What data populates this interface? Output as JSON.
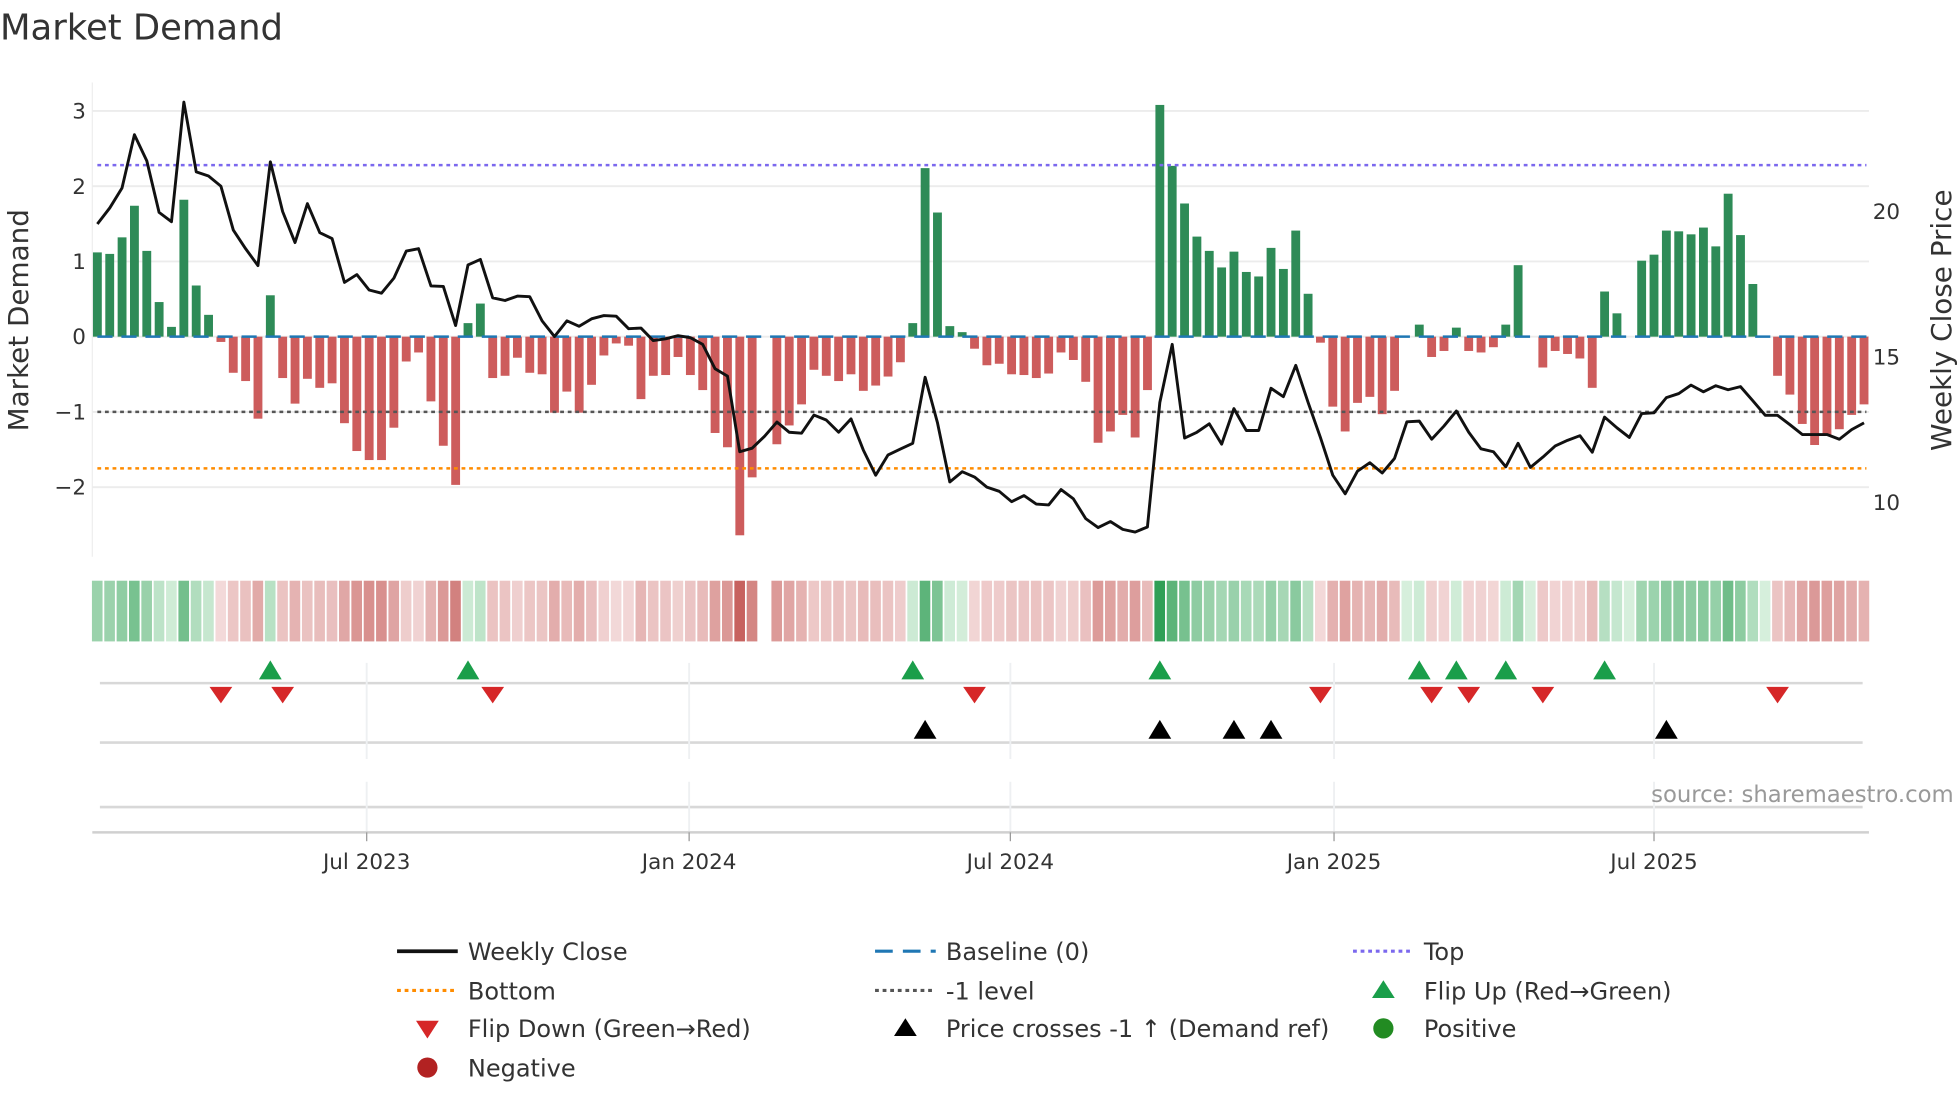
{
  "chart_data": {
    "type": "bar",
    "title": "Market Demand",
    "ylabel": "Market Demand",
    "y2label": "Weekly Close Price",
    "ylim": [
      -2.95,
      3.35
    ],
    "y2lim": [
      8.0,
      24.5
    ],
    "yticks": [
      3,
      2,
      1,
      0,
      -1,
      -2
    ],
    "ytick_labels": [
      "3",
      "2",
      "1",
      "0",
      "−1",
      "−2"
    ],
    "y2ticks": [
      20,
      15,
      10
    ],
    "y2tick_labels": [
      "20",
      "15",
      "10"
    ],
    "xticks": [
      {
        "week": 22.8,
        "label": "Jul 2023"
      },
      {
        "week": 48.9,
        "label": "Jan 2024"
      },
      {
        "week": 74.9,
        "label": "Jul 2024"
      },
      {
        "week": 101.1,
        "label": "Jan 2025"
      },
      {
        "week": 127.0,
        "label": "Jul 2025"
      }
    ],
    "levels": {
      "top": 2.28,
      "bottom": -1.75,
      "minus_one": -1,
      "baseline": 0
    },
    "demand": [
      1.12,
      1.1,
      1.32,
      1.74,
      1.14,
      0.46,
      0.13,
      1.82,
      0.68,
      0.29,
      -0.07,
      -0.48,
      -0.59,
      -1.09,
      0.55,
      -0.55,
      -0.89,
      -0.56,
      -0.68,
      -0.62,
      -1.15,
      -1.52,
      -1.64,
      -1.64,
      -1.21,
      -0.33,
      -0.21,
      -0.86,
      -1.45,
      -1.97,
      0.18,
      0.44,
      -0.55,
      -0.52,
      -0.28,
      -0.48,
      -0.5,
      -1.01,
      -0.73,
      -1.01,
      -0.64,
      -0.25,
      -0.09,
      -0.12,
      -0.83,
      -0.52,
      -0.51,
      -0.27,
      -0.51,
      -0.71,
      -1.28,
      -1.47,
      -2.64,
      -1.87,
      null,
      -1.43,
      -1.18,
      -0.9,
      -0.44,
      -0.52,
      -0.59,
      -0.5,
      -0.72,
      -0.65,
      -0.53,
      -0.34,
      0.18,
      2.24,
      1.65,
      0.14,
      0.06,
      -0.16,
      -0.38,
      -0.36,
      -0.5,
      -0.51,
      -0.55,
      -0.49,
      -0.21,
      -0.31,
      -0.6,
      -1.41,
      -1.26,
      -1.04,
      -1.34,
      -0.71,
      3.08,
      2.27,
      1.77,
      1.33,
      1.14,
      0.92,
      1.13,
      0.86,
      0.8,
      1.18,
      0.9,
      1.41,
      0.57,
      -0.08,
      -0.93,
      -1.26,
      -0.88,
      -0.8,
      -1.03,
      -0.72,
      0.0,
      0.16,
      -0.27,
      -0.19,
      0.12,
      -0.19,
      -0.21,
      -0.14,
      0.16,
      0.95,
      0.0,
      -0.41,
      -0.19,
      -0.23,
      -0.29,
      -0.68,
      0.6,
      0.31,
      0.0,
      1.01,
      1.09,
      1.41,
      1.4,
      1.36,
      1.45,
      1.2,
      1.9,
      1.35,
      0.7,
      0.0,
      -0.52,
      -0.77,
      -1.16,
      -1.44,
      -1.31,
      -1.23,
      -1.04,
      -0.9
    ],
    "weekly_close": [
      19.57,
      20.12,
      20.81,
      22.64,
      21.74,
      19.97,
      19.65,
      23.76,
      21.36,
      21.22,
      20.87,
      19.36,
      18.72,
      18.14,
      21.71,
      20.0,
      18.93,
      20.27,
      19.27,
      19.07,
      17.56,
      17.83,
      17.3,
      17.19,
      17.71,
      18.64,
      18.72,
      17.44,
      17.42,
      16.08,
      18.16,
      18.35,
      17.03,
      16.94,
      17.09,
      17.07,
      16.24,
      15.7,
      16.24,
      16.05,
      16.31,
      16.42,
      16.4,
      15.97,
      15.99,
      15.56,
      15.62,
      15.73,
      15.66,
      15.43,
      14.59,
      14.34,
      11.74,
      11.86,
      12.27,
      12.76,
      12.41,
      12.38,
      13.0,
      12.83,
      12.41,
      12.87,
      11.8,
      10.93,
      11.63,
      11.83,
      12.03,
      14.3,
      12.73,
      10.7,
      11.05,
      10.87,
      10.52,
      10.38,
      10.02,
      10.23,
      9.94,
      9.91,
      10.44,
      10.12,
      9.44,
      9.13,
      9.34,
      9.07,
      8.98,
      9.15,
      13.43,
      15.43,
      12.21,
      12.41,
      12.7,
      12.0,
      13.22,
      12.47,
      12.47,
      13.92,
      13.63,
      14.71,
      13.43,
      12.23,
      10.93,
      10.29,
      11.07,
      11.36,
      11.01,
      11.51,
      12.77,
      12.79,
      12.17,
      12.62,
      13.14,
      12.41,
      11.84,
      11.74,
      11.22,
      12.03,
      11.2,
      11.55,
      11.94,
      12.13,
      12.29,
      11.72,
      12.93,
      12.56,
      12.23,
      13.05,
      13.08,
      13.6,
      13.74,
      14.03,
      13.8,
      14.01,
      13.87,
      13.98,
      13.49,
      12.99,
      12.99,
      12.67,
      12.33,
      12.33,
      12.33,
      12.17,
      12.5,
      12.73
    ],
    "flip_up_weeks": [
      15,
      31,
      67,
      87,
      108,
      111,
      115,
      123
    ],
    "flip_down_weeks": [
      11,
      16,
      33,
      72,
      100,
      109,
      112,
      118,
      137
    ],
    "price_cross_weeks": [
      68,
      87,
      93,
      96,
      128
    ],
    "colors": {
      "positive": "#2e8b57",
      "negative": "#cd5c5c",
      "baseline": "#1f77b4",
      "top": "#7b68ee",
      "bottom": "#ff8c00",
      "minus_one": "#555555",
      "price": "#111111",
      "flip_up": "#1a9e4a",
      "flip_down": "#d62728",
      "price_cross": "#000000",
      "positive_dot": "#228b22",
      "negative_dot": "#b22222"
    },
    "legend": [
      {
        "key": "line",
        "label": "Weekly Close"
      },
      {
        "key": "baseline",
        "label": "Baseline (0)"
      },
      {
        "key": "top",
        "label": "Top"
      },
      {
        "key": "bottom",
        "label": "Bottom"
      },
      {
        "key": "minus_one",
        "label": "-1 level"
      },
      {
        "key": "flip_up",
        "label": "Flip Up (Red→Green)"
      },
      {
        "key": "flip_down",
        "label": "Flip Down (Green→Red)"
      },
      {
        "key": "price_cross",
        "label": "Price crosses -1 ↑ (Demand ref)"
      },
      {
        "key": "positive",
        "label": "Positive"
      },
      {
        "key": "negative",
        "label": "Negative"
      }
    ],
    "legend_placement": "bottom"
  },
  "source": "source: sharemaestro.com"
}
